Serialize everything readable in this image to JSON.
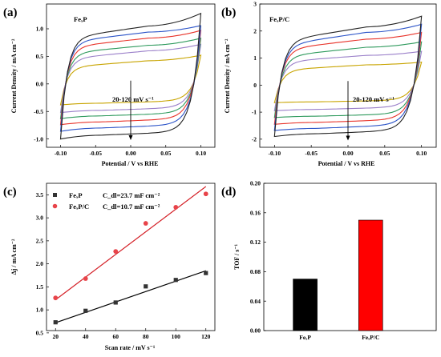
{
  "figure": {
    "panel_labels": [
      "(a)",
      "(b)",
      "(c)",
      "(d)"
    ]
  },
  "chart_data": [
    {
      "panel": "(a)",
      "type": "line",
      "plot_title": "FeₓP",
      "xlabel": "Potential / V vs RHE",
      "ylabel": "Current Density / mA cm⁻²",
      "xlim": [
        -0.12,
        0.12
      ],
      "ylim": [
        -1.15,
        1.45
      ],
      "xticks": [
        "-0.10",
        "-0.05",
        "0.00",
        "0.05",
        "0.10"
      ],
      "xtick_values": [
        -0.1,
        -0.05,
        0.0,
        0.05,
        0.1
      ],
      "yticks": [
        "-1.0",
        "-0.5",
        "0.0",
        "0.5",
        "1.0"
      ],
      "ytick_values": [
        -1.0,
        -0.5,
        0.0,
        0.5,
        1.0
      ],
      "annotation": "20-120 mV s⁻¹",
      "arrow": {
        "x": 0.0,
        "y_from": 0.06,
        "y_to": -1.02
      },
      "series": [
        {
          "label": "20",
          "color": "#c8a400",
          "x_range": [
            -0.1,
            0.1
          ],
          "upper_start": 0.3,
          "upper_mid": 0.42,
          "upper_end": 0.52,
          "lower_end": -0.3,
          "lower_mid": -0.35,
          "lower_start": -0.38
        },
        {
          "label": "40",
          "color": "#9a7fc9",
          "x_range": [
            -0.1,
            0.1
          ],
          "upper_start": 0.45,
          "upper_mid": 0.6,
          "upper_end": 0.72,
          "lower_end": -0.42,
          "lower_mid": -0.48,
          "lower_start": -0.52
        },
        {
          "label": "60",
          "color": "#2f9a5d",
          "x_range": [
            -0.1,
            0.1
          ],
          "upper_start": 0.55,
          "upper_mid": 0.7,
          "upper_end": 0.83,
          "lower_end": -0.52,
          "lower_mid": -0.58,
          "lower_start": -0.63
        },
        {
          "label": "80",
          "color": "#e8332a",
          "x_range": [
            -0.1,
            0.1
          ],
          "upper_start": 0.66,
          "upper_mid": 0.83,
          "upper_end": 0.97,
          "lower_end": -0.62,
          "lower_mid": -0.69,
          "lower_start": -0.74
        },
        {
          "label": "100",
          "color": "#2c54c8",
          "x_range": [
            -0.1,
            0.1
          ],
          "upper_start": 0.75,
          "upper_mid": 0.94,
          "upper_end": 1.06,
          "lower_end": -0.73,
          "lower_mid": -0.8,
          "lower_start": -0.86
        },
        {
          "label": "120",
          "color": "#222222",
          "x_range": [
            -0.1,
            0.1
          ],
          "upper_start": 0.82,
          "upper_mid": 1.05,
          "upper_end": 1.28,
          "lower_end": -0.86,
          "lower_mid": -0.93,
          "lower_start": -1.0
        }
      ]
    },
    {
      "panel": "(b)",
      "type": "line",
      "plot_title": "FeₓP/C",
      "xlabel": "Potential / V vs RHE",
      "ylabel": "Current Density / mA cm⁻²",
      "xlim": [
        -0.12,
        0.12
      ],
      "ylim": [
        -2.3,
        3.0
      ],
      "xticks": [
        "-0.10",
        "-0.05",
        "0.00",
        "0.05",
        "0.10"
      ],
      "xtick_values": [
        -0.1,
        -0.05,
        0.0,
        0.05,
        0.1
      ],
      "yticks": [
        "-2",
        "-1",
        "0",
        "1",
        "2",
        "3"
      ],
      "ytick_values": [
        -2,
        -1,
        0,
        1,
        2,
        3
      ],
      "annotation": "20-120 mV s⁻¹",
      "arrow": {
        "x": 0.0,
        "y_from": 0.15,
        "y_to": -2.05
      },
      "series": [
        {
          "label": "20",
          "color": "#c8a400",
          "x_range": [
            -0.1,
            0.1
          ],
          "upper_start": 0.55,
          "upper_mid": 0.75,
          "upper_end": 0.85,
          "lower_end": -0.55,
          "lower_mid": -0.62,
          "lower_start": -0.65
        },
        {
          "label": "40",
          "color": "#9a7fc9",
          "x_range": [
            -0.1,
            0.1
          ],
          "upper_start": 0.85,
          "upper_mid": 1.1,
          "upper_end": 1.25,
          "lower_end": -0.8,
          "lower_mid": -0.9,
          "lower_start": -0.95
        },
        {
          "label": "60",
          "color": "#2f9a5d",
          "x_range": [
            -0.1,
            0.1
          ],
          "upper_start": 1.05,
          "upper_mid": 1.4,
          "upper_end": 1.6,
          "lower_end": -1.05,
          "lower_mid": -1.15,
          "lower_start": -1.2
        },
        {
          "label": "80",
          "color": "#e8332a",
          "x_range": [
            -0.1,
            0.1
          ],
          "upper_start": 1.3,
          "upper_mid": 1.7,
          "upper_end": 1.95,
          "lower_end": -1.25,
          "lower_mid": -1.38,
          "lower_start": -1.45
        },
        {
          "label": "100",
          "color": "#2c54c8",
          "x_range": [
            -0.1,
            0.1
          ],
          "upper_start": 1.45,
          "upper_mid": 1.95,
          "upper_end": 2.25,
          "lower_end": -1.45,
          "lower_mid": -1.6,
          "lower_start": -1.68
        },
        {
          "label": "120",
          "color": "#222222",
          "x_range": [
            -0.1,
            0.1
          ],
          "upper_start": 1.6,
          "upper_mid": 2.15,
          "upper_end": 2.55,
          "lower_end": -1.65,
          "lower_mid": -1.8,
          "lower_start": -1.9
        }
      ]
    },
    {
      "panel": "(c)",
      "type": "scatter",
      "xlabel": "Scan rate / mV s⁻¹",
      "ylabel": "Δj / mA cm⁻²",
      "xlim": [
        14,
        126
      ],
      "ylim": [
        0.55,
        3.75
      ],
      "xticks": [
        "20",
        "40",
        "60",
        "80",
        "100",
        "120"
      ],
      "xtick_values": [
        20,
        40,
        60,
        80,
        100,
        120
      ],
      "yticks": [
        "0.5",
        "1.0",
        "1.5",
        "2.0",
        "2.5",
        "3.0",
        "3.5"
      ],
      "ytick_values": [
        0.5,
        1.0,
        1.5,
        2.0,
        2.5,
        3.0,
        3.5
      ],
      "x": [
        20,
        40,
        60,
        80,
        100,
        120
      ],
      "legend_position": "top-left",
      "series": [
        {
          "name": "FeₓP",
          "cdl": "C_dl=23.7 mF cm⁻²",
          "marker": "square",
          "point_color": "#333333",
          "line_color": "#000000",
          "values": [
            0.73,
            0.98,
            1.16,
            1.51,
            1.65,
            1.8
          ],
          "fit": {
            "x1": 20,
            "y1": 0.72,
            "x2": 120,
            "y2": 1.85
          }
        },
        {
          "name": "FeₓP/C",
          "cdl": "C_dl=10.7 mF cm⁻²",
          "marker": "circle",
          "point_color": "#e8444a",
          "line_color": "#d41f26",
          "values": [
            1.26,
            1.68,
            2.27,
            2.88,
            3.23,
            3.52
          ],
          "fit": {
            "x1": 20,
            "y1": 1.22,
            "x2": 120,
            "y2": 3.68
          }
        }
      ]
    },
    {
      "panel": "(d)",
      "type": "bar",
      "ylabel": "TOF / s⁻¹",
      "ylim": [
        0,
        0.2
      ],
      "yticks": [
        "0.00",
        "0.04",
        "0.08",
        "0.12",
        "0.16",
        "0.20"
      ],
      "ytick_values": [
        0.0,
        0.04,
        0.08,
        0.12,
        0.16,
        0.2
      ],
      "categories": [
        "FeₓP",
        "FeₓP/C"
      ],
      "values": [
        0.07,
        0.15
      ],
      "colors": [
        "#000000",
        "#ff0000"
      ]
    }
  ]
}
